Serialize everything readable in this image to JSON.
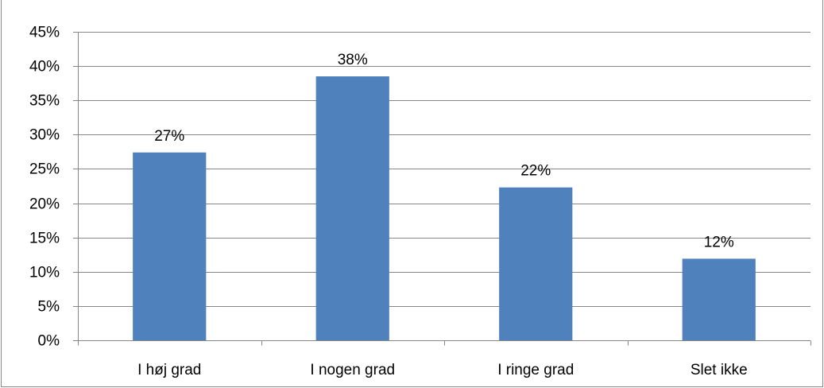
{
  "chart_data": {
    "type": "bar",
    "title": "",
    "xlabel": "",
    "ylabel": "",
    "categories": [
      "I høj grad",
      "I nogen grad",
      "I ringe grad",
      "Slet ikke"
    ],
    "values": [
      27.4,
      38.5,
      22.3,
      11.9
    ],
    "data_labels": [
      "27%",
      "38%",
      "22%",
      "12%"
    ],
    "ylim": [
      0,
      45
    ],
    "y_ticks": [
      0,
      5,
      10,
      15,
      20,
      25,
      30,
      35,
      40,
      45
    ],
    "y_tick_labels": [
      "0%",
      "5%",
      "10%",
      "15%",
      "20%",
      "25%",
      "30%",
      "35%",
      "40%",
      "45%"
    ],
    "grid": true,
    "legend": "none",
    "colors": {
      "bar": "#4F81BD",
      "grid": "#868686",
      "axis": "#868686",
      "frame": "#868686"
    }
  }
}
